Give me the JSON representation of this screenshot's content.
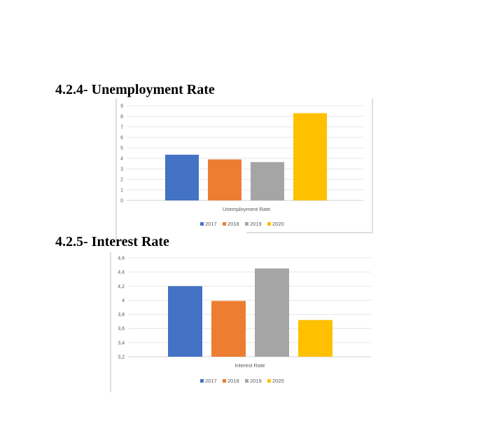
{
  "headings": {
    "unemployment": "4.2.4- Unemployment Rate",
    "interest": "4.2.5- Interest Rate"
  },
  "chart_data": [
    {
      "type": "bar",
      "xlabel": "Unemployment Rate",
      "ylim": [
        0,
        9
      ],
      "yticks": [
        "0",
        "1",
        "2",
        "3",
        "4",
        "5",
        "6",
        "7",
        "8",
        "9"
      ],
      "grid": true,
      "legend": "bottom",
      "series": [
        {
          "name": "2017",
          "values": [
            4.35
          ],
          "color": "#4472C4"
        },
        {
          "name": "2018",
          "values": [
            3.9
          ],
          "color": "#ED7D31"
        },
        {
          "name": "2019",
          "values": [
            3.65
          ],
          "color": "#A5A5A5"
        },
        {
          "name": "2020",
          "values": [
            8.3
          ],
          "color": "#FFC000"
        }
      ]
    },
    {
      "type": "bar",
      "xlabel": "Interest Rate",
      "ylim": [
        3.2,
        4.6
      ],
      "yticks": [
        "3,2",
        "3,4",
        "3,6",
        "3,8",
        "4",
        "4,2",
        "4,4",
        "4,6"
      ],
      "grid": true,
      "legend": "bottom",
      "series": [
        {
          "name": "2017",
          "values": [
            4.2
          ],
          "color": "#4472C4"
        },
        {
          "name": "2018",
          "values": [
            3.99
          ],
          "color": "#ED7D31"
        },
        {
          "name": "2019",
          "values": [
            4.45
          ],
          "color": "#A5A5A5"
        },
        {
          "name": "2020",
          "values": [
            3.72
          ],
          "color": "#FFC000"
        }
      ]
    }
  ]
}
